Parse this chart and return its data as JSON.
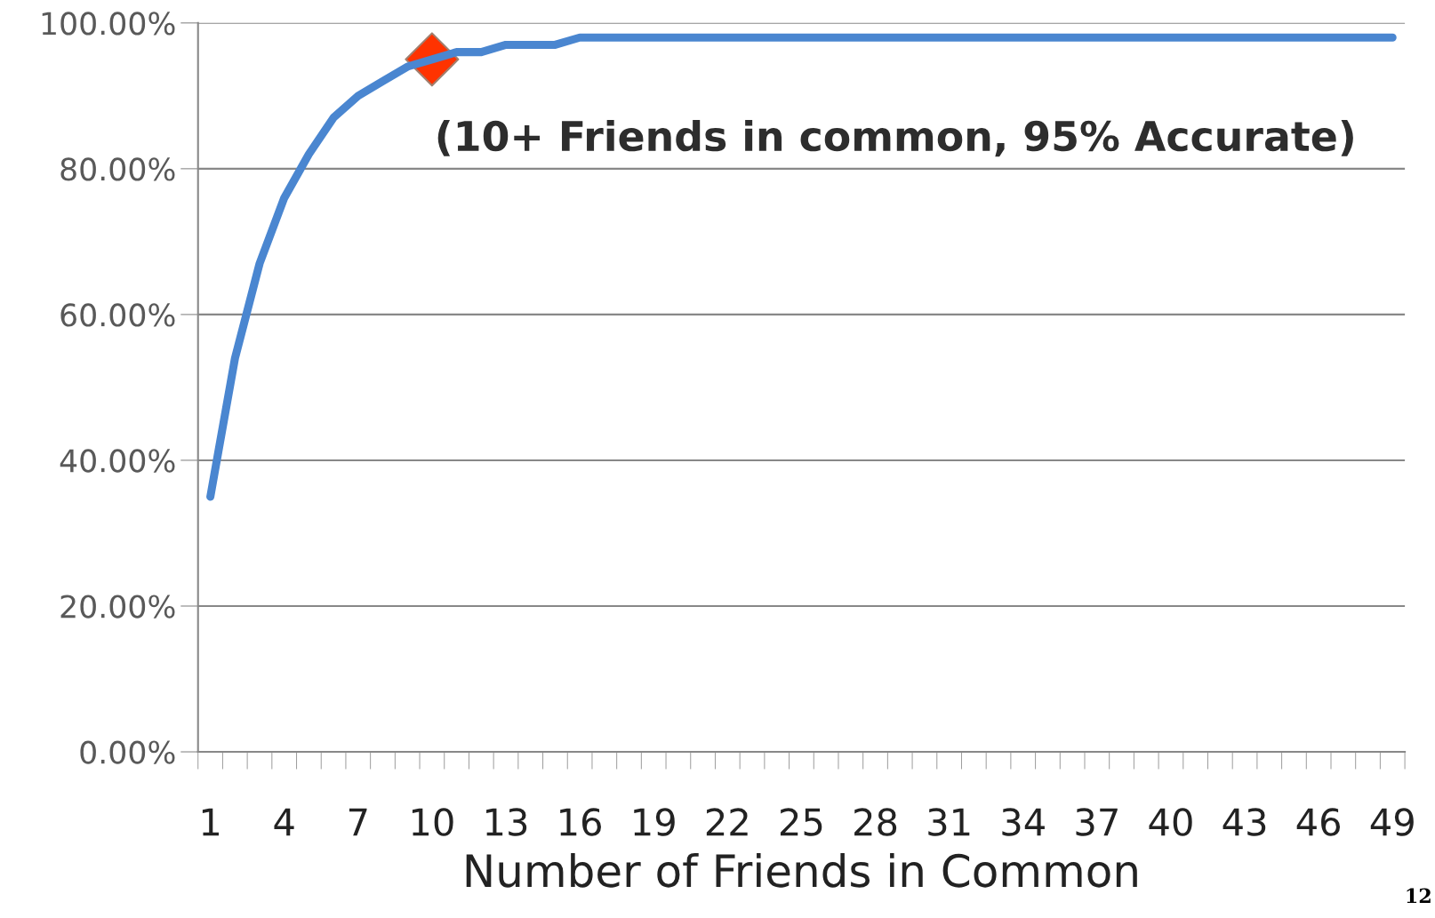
{
  "chart_data": {
    "type": "line",
    "xlabel": "Number of Friends in Common",
    "categories": [
      "1",
      null,
      null,
      "4",
      null,
      null,
      "7",
      null,
      null,
      "10",
      null,
      null,
      "13",
      null,
      null,
      "16",
      null,
      null,
      "19",
      null,
      null,
      "22",
      null,
      null,
      "25",
      null,
      null,
      "28",
      null,
      null,
      "31",
      null,
      null,
      "34",
      null,
      null,
      "37",
      null,
      null,
      "40",
      null,
      null,
      "43",
      null,
      null,
      "46",
      null,
      null,
      "49"
    ],
    "series": [
      {
        "color": "#4a86d0",
        "values": [
          35,
          54,
          67,
          76,
          82,
          87,
          90,
          92,
          94,
          95,
          96,
          96,
          97,
          97,
          97,
          98,
          98,
          98,
          98,
          98,
          98,
          98,
          98,
          98,
          98,
          98,
          98,
          98,
          98,
          98,
          98,
          98,
          98,
          98,
          98,
          98,
          98,
          98,
          98,
          98,
          98,
          98,
          98,
          98,
          98,
          98,
          98,
          98,
          98
        ]
      },
      {
        "type": "scatter",
        "color": "#ff3300",
        "marker": "diamond",
        "x": [
          "10"
        ],
        "values": [
          95
        ]
      }
    ],
    "ylim": [
      0,
      100
    ],
    "yticks": [
      {
        "value": 0,
        "label": "0.00%"
      },
      {
        "value": 20,
        "label": "20.00%"
      },
      {
        "value": 40,
        "label": "40.00%"
      },
      {
        "value": 60,
        "label": "60.00%"
      },
      {
        "value": 80,
        "label": "80.00%"
      },
      {
        "value": 100,
        "label": "100.00%"
      }
    ],
    "grid": "y",
    "legend": false,
    "annotations": [
      "(10+ Friends in common, 95% Accurate)",
      "12"
    ]
  }
}
